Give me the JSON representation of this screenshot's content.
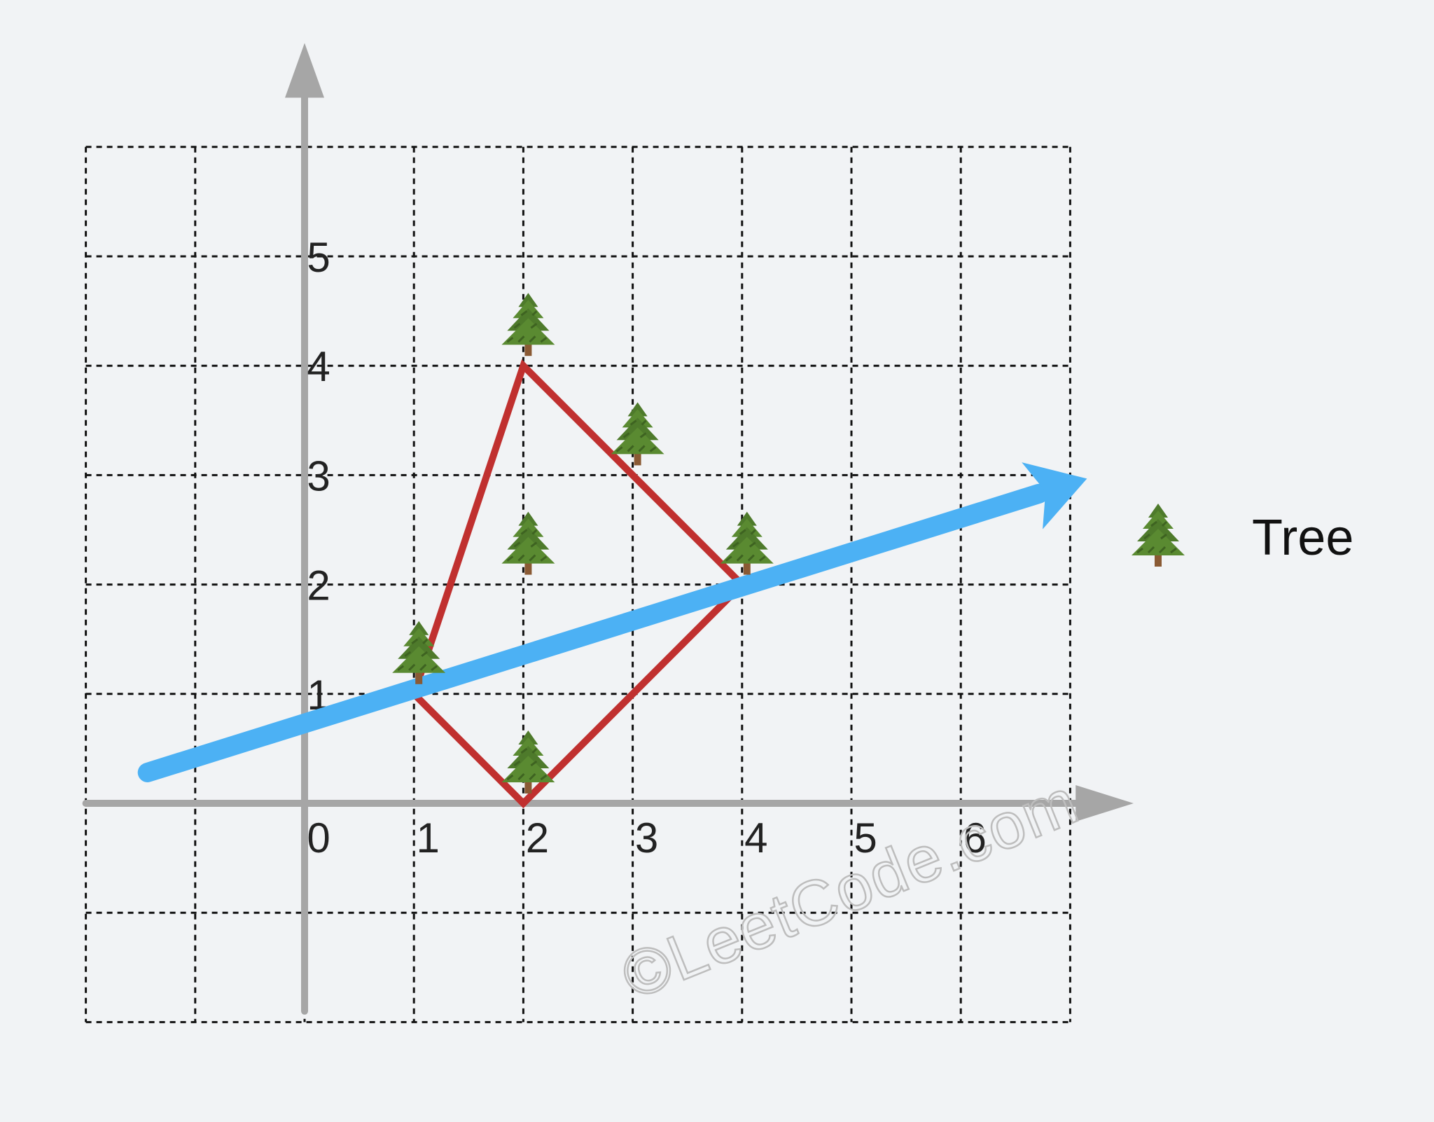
{
  "diagram": {
    "x_ticks": [
      "0",
      "1",
      "2",
      "3",
      "4",
      "5",
      "6"
    ],
    "y_ticks": [
      "1",
      "2",
      "3",
      "4",
      "5"
    ],
    "trees": [
      {
        "x": 1,
        "y": 1
      },
      {
        "x": 2,
        "y": 0
      },
      {
        "x": 2,
        "y": 2
      },
      {
        "x": 2,
        "y": 4
      },
      {
        "x": 3,
        "y": 3
      },
      {
        "x": 4,
        "y": 2
      }
    ],
    "hull": [
      {
        "x": 1,
        "y": 1
      },
      {
        "x": 2,
        "y": 4
      },
      {
        "x": 4,
        "y": 2
      },
      {
        "x": 2,
        "y": 0
      }
    ],
    "arrow": {
      "from": {
        "x": -1.5,
        "y": 0.25
      },
      "to": {
        "x": 7,
        "y": 3
      }
    },
    "colors": {
      "hull": "#c0302f",
      "arrow": "#4cb1f4",
      "axis": "#a6a6a6",
      "background": "#f1f3f5"
    }
  },
  "legend": {
    "icon": "tree-icon",
    "label": "Tree"
  },
  "watermark": "©LeetCode.com"
}
